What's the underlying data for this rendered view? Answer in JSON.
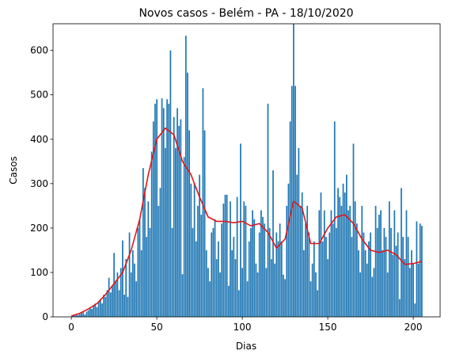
{
  "chart_data": {
    "type": "bar",
    "title": "Novos casos - Belém - PA - 18/10/2020",
    "xlabel": "Dias",
    "ylabel": "Casos",
    "x": [
      0,
      1,
      2,
      3,
      4,
      5,
      6,
      7,
      8,
      9,
      10,
      11,
      12,
      13,
      14,
      15,
      16,
      17,
      18,
      19,
      20,
      21,
      22,
      23,
      24,
      25,
      26,
      27,
      28,
      29,
      30,
      31,
      32,
      33,
      34,
      35,
      36,
      37,
      38,
      39,
      40,
      41,
      42,
      43,
      44,
      45,
      46,
      47,
      48,
      49,
      50,
      51,
      52,
      53,
      54,
      55,
      56,
      57,
      58,
      59,
      60,
      61,
      62,
      63,
      64,
      65,
      66,
      67,
      68,
      69,
      70,
      71,
      72,
      73,
      74,
      75,
      76,
      77,
      78,
      79,
      80,
      81,
      82,
      83,
      84,
      85,
      86,
      87,
      88,
      89,
      90,
      91,
      92,
      93,
      94,
      95,
      96,
      97,
      98,
      99,
      100,
      101,
      102,
      103,
      104,
      105,
      106,
      107,
      108,
      109,
      110,
      111,
      112,
      113,
      114,
      115,
      116,
      117,
      118,
      119,
      120,
      121,
      122,
      123,
      124,
      125,
      126,
      127,
      128,
      129,
      130,
      131,
      132,
      133,
      134,
      135,
      136,
      137,
      138,
      139,
      140,
      141,
      142,
      143,
      144,
      145,
      146,
      147,
      148,
      149,
      150,
      151,
      152,
      153,
      154,
      155,
      156,
      157,
      158,
      159,
      160,
      161,
      162,
      163,
      164,
      165,
      166,
      167,
      168,
      169,
      170,
      171,
      172,
      173,
      174,
      175,
      176,
      177,
      178,
      179,
      180,
      181,
      182,
      183,
      184,
      185,
      186,
      187,
      188,
      189,
      190,
      191,
      192,
      193,
      194,
      195,
      196,
      197,
      198,
      199,
      200,
      201,
      202,
      203,
      204,
      205
    ],
    "values": [
      0,
      2,
      3,
      5,
      4,
      6,
      8,
      10,
      5,
      12,
      15,
      20,
      18,
      25,
      30,
      22,
      35,
      40,
      30,
      50,
      45,
      60,
      88,
      55,
      70,
      144,
      80,
      100,
      60,
      110,
      172,
      50,
      130,
      45,
      190,
      100,
      150,
      120,
      80,
      200,
      220,
      150,
      335,
      290,
      180,
      260,
      200,
      372,
      440,
      480,
      490,
      250,
      290,
      492,
      470,
      380,
      490,
      480,
      600,
      200,
      450,
      380,
      470,
      430,
      445,
      96,
      360,
      633,
      550,
      420,
      300,
      200,
      300,
      170,
      250,
      320,
      230,
      515,
      420,
      150,
      110,
      80,
      190,
      200,
      220,
      130,
      170,
      100,
      210,
      255,
      275,
      275,
      70,
      260,
      150,
      180,
      130,
      270,
      60,
      390,
      110,
      260,
      250,
      80,
      170,
      200,
      240,
      220,
      120,
      100,
      190,
      240,
      225,
      210,
      110,
      480,
      200,
      130,
      330,
      120,
      190,
      170,
      210,
      170,
      95,
      85,
      250,
      300,
      440,
      520,
      660,
      520,
      320,
      380,
      250,
      280,
      150,
      210,
      250,
      190,
      80,
      120,
      170,
      100,
      60,
      240,
      280,
      170,
      240,
      180,
      130,
      190,
      240,
      210,
      440,
      200,
      290,
      270,
      250,
      300,
      280,
      320,
      240,
      250,
      180,
      390,
      260,
      210,
      150,
      100,
      250,
      190,
      150,
      120,
      170,
      190,
      90,
      110,
      250,
      200,
      230,
      240,
      150,
      200,
      180,
      100,
      260,
      200,
      140,
      240,
      160,
      190,
      40,
      290,
      180,
      130,
      240,
      180,
      110,
      150,
      120,
      30,
      215,
      120,
      210,
      205
    ],
    "color": "#1f77b4",
    "line": {
      "x": [
        0,
        5,
        10,
        15,
        20,
        25,
        30,
        35,
        40,
        45,
        50,
        55,
        60,
        65,
        70,
        75,
        80,
        85,
        90,
        95,
        100,
        105,
        110,
        115,
        120,
        125,
        130,
        135,
        140,
        145,
        150,
        155,
        160,
        165,
        170,
        175,
        180,
        185,
        190,
        195,
        200,
        205
      ],
      "values": [
        2,
        8,
        18,
        30,
        50,
        75,
        100,
        150,
        220,
        320,
        400,
        425,
        410,
        350,
        320,
        270,
        225,
        215,
        215,
        212,
        215,
        205,
        210,
        190,
        155,
        175,
        260,
        245,
        165,
        165,
        200,
        225,
        230,
        210,
        175,
        150,
        145,
        150,
        140,
        118,
        120,
        125
      ],
      "color": "#e0161b"
    },
    "xlim": [
      -10.7,
      215.7
    ],
    "ylim": [
      0,
      660
    ],
    "xticks": [
      0,
      50,
      100,
      150,
      200
    ],
    "yticks": [
      0,
      100,
      200,
      300,
      400,
      500,
      600
    ]
  }
}
